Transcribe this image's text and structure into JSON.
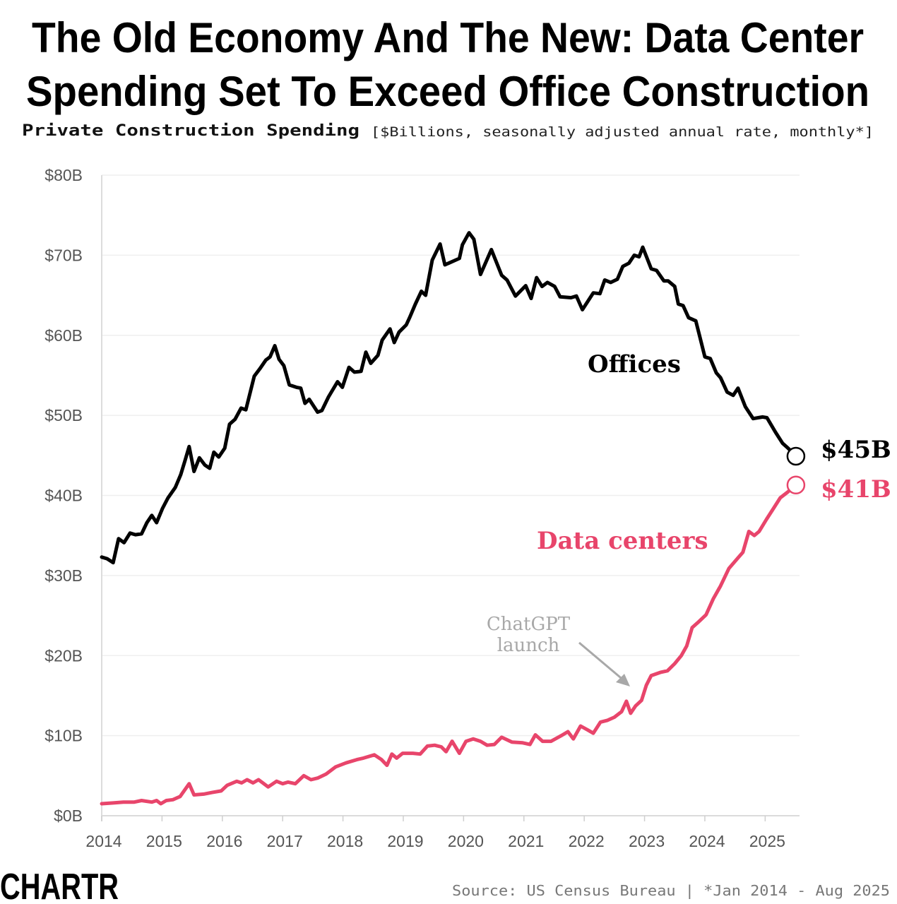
{
  "title_line1": "The Old Economy And The New: Data Center",
  "title_line2": "Spending Set To Exceed Office Construction",
  "subtitle_bold": "Private Construction Spending",
  "subtitle_note": "[$Billions, seasonally adjusted annual rate, monthly*]",
  "source": "Source: US Census Bureau | *Jan 2014 - Aug 2025",
  "logo": "CHARTR",
  "colors": {
    "offices": "#000000",
    "data_centers": "#e8456b",
    "annotation": "#a8a8a8",
    "grid": "#efefef"
  },
  "chart_data": {
    "type": "line",
    "title": "The Old Economy And The New: Data Center Spending Set To Exceed Office Construction",
    "xlabel": "",
    "ylabel": "",
    "xlim": [
      2014,
      2025.64
    ],
    "ylim": [
      0,
      80
    ],
    "grid": "horizontal",
    "x_ticks": [
      "2014",
      "2015",
      "2016",
      "2017",
      "2018",
      "2019",
      "2020",
      "2021",
      "2022",
      "2023",
      "2024",
      "2025"
    ],
    "y_ticks": [
      "$0B",
      "$10B",
      "$20B",
      "$30B",
      "$40B",
      "$50B",
      "$60B",
      "$70B",
      "$80B"
    ],
    "series": [
      {
        "name": "Offices",
        "end_label": "$45B",
        "points": [
          [
            2014.0,
            32.3
          ],
          [
            2014.09,
            32.1
          ],
          [
            2014.19,
            31.6
          ],
          [
            2014.28,
            34.6
          ],
          [
            2014.37,
            34.1
          ],
          [
            2014.47,
            35.3
          ],
          [
            2014.56,
            35.1
          ],
          [
            2014.66,
            35.2
          ],
          [
            2014.75,
            36.6
          ],
          [
            2014.83,
            37.5
          ],
          [
            2014.91,
            36.6
          ],
          [
            2015.01,
            38.4
          ],
          [
            2015.1,
            39.7
          ],
          [
            2015.22,
            41.0
          ],
          [
            2015.31,
            42.6
          ],
          [
            2015.38,
            44.3
          ],
          [
            2015.45,
            46.1
          ],
          [
            2015.53,
            43.0
          ],
          [
            2015.62,
            44.7
          ],
          [
            2015.71,
            43.8
          ],
          [
            2015.79,
            43.4
          ],
          [
            2015.86,
            45.4
          ],
          [
            2015.94,
            44.8
          ],
          [
            2016.04,
            45.9
          ],
          [
            2016.12,
            48.9
          ],
          [
            2016.21,
            49.5
          ],
          [
            2016.31,
            50.9
          ],
          [
            2016.39,
            50.7
          ],
          [
            2016.53,
            54.9
          ],
          [
            2016.62,
            55.8
          ],
          [
            2016.72,
            56.9
          ],
          [
            2016.79,
            57.3
          ],
          [
            2016.87,
            58.7
          ],
          [
            2016.94,
            57.0
          ],
          [
            2017.02,
            56.2
          ],
          [
            2017.11,
            53.8
          ],
          [
            2017.23,
            53.5
          ],
          [
            2017.3,
            53.4
          ],
          [
            2017.37,
            51.5
          ],
          [
            2017.44,
            52.0
          ],
          [
            2017.58,
            50.4
          ],
          [
            2017.65,
            50.6
          ],
          [
            2017.76,
            52.3
          ],
          [
            2017.91,
            54.2
          ],
          [
            2017.99,
            53.5
          ],
          [
            2018.1,
            56.0
          ],
          [
            2018.19,
            55.4
          ],
          [
            2018.3,
            55.5
          ],
          [
            2018.38,
            57.9
          ],
          [
            2018.46,
            56.5
          ],
          [
            2018.58,
            57.5
          ],
          [
            2018.65,
            59.4
          ],
          [
            2018.78,
            60.8
          ],
          [
            2018.85,
            59.1
          ],
          [
            2018.93,
            60.4
          ],
          [
            2019.05,
            61.3
          ],
          [
            2019.11,
            62.3
          ],
          [
            2019.2,
            63.9
          ],
          [
            2019.3,
            65.5
          ],
          [
            2019.37,
            65.0
          ],
          [
            2019.48,
            69.4
          ],
          [
            2019.61,
            71.4
          ],
          [
            2019.69,
            68.8
          ],
          [
            2019.93,
            69.6
          ],
          [
            2019.98,
            71.3
          ],
          [
            2020.09,
            72.8
          ],
          [
            2020.17,
            72.0
          ],
          [
            2020.28,
            67.6
          ],
          [
            2020.46,
            70.7
          ],
          [
            2020.63,
            67.5
          ],
          [
            2020.72,
            66.9
          ],
          [
            2020.86,
            64.9
          ],
          [
            2021.03,
            66.2
          ],
          [
            2021.12,
            64.6
          ],
          [
            2021.21,
            67.2
          ],
          [
            2021.3,
            66.1
          ],
          [
            2021.39,
            66.6
          ],
          [
            2021.51,
            66.1
          ],
          [
            2021.6,
            64.8
          ],
          [
            2021.78,
            64.7
          ],
          [
            2021.87,
            64.9
          ],
          [
            2021.97,
            63.2
          ],
          [
            2022.15,
            65.3
          ],
          [
            2022.26,
            65.2
          ],
          [
            2022.34,
            66.9
          ],
          [
            2022.44,
            66.6
          ],
          [
            2022.55,
            67.0
          ],
          [
            2022.64,
            68.6
          ],
          [
            2022.74,
            69.0
          ],
          [
            2022.83,
            70.0
          ],
          [
            2022.91,
            69.8
          ],
          [
            2022.97,
            71.0
          ],
          [
            2023.11,
            68.3
          ],
          [
            2023.2,
            68.1
          ],
          [
            2023.32,
            66.8
          ],
          [
            2023.39,
            66.8
          ],
          [
            2023.5,
            66.1
          ],
          [
            2023.56,
            63.9
          ],
          [
            2023.64,
            63.7
          ],
          [
            2023.73,
            62.2
          ],
          [
            2023.85,
            61.8
          ],
          [
            2023.91,
            60.0
          ],
          [
            2024.0,
            57.3
          ],
          [
            2024.09,
            57.1
          ],
          [
            2024.19,
            55.3
          ],
          [
            2024.26,
            54.7
          ],
          [
            2024.37,
            52.9
          ],
          [
            2024.47,
            52.5
          ],
          [
            2024.55,
            53.4
          ],
          [
            2024.67,
            51.1
          ],
          [
            2024.8,
            49.6
          ],
          [
            2024.96,
            49.8
          ],
          [
            2025.03,
            49.7
          ],
          [
            2025.17,
            47.9
          ],
          [
            2025.29,
            46.5
          ],
          [
            2025.38,
            45.9
          ],
          [
            2025.51,
            44.9
          ]
        ]
      },
      {
        "name": "Data centers",
        "end_label": "$41B",
        "points": [
          [
            2014.0,
            1.5
          ],
          [
            2014.19,
            1.6
          ],
          [
            2014.36,
            1.7
          ],
          [
            2014.54,
            1.7
          ],
          [
            2014.66,
            1.9
          ],
          [
            2014.83,
            1.7
          ],
          [
            2014.91,
            1.9
          ],
          [
            2014.98,
            1.5
          ],
          [
            2015.07,
            1.9
          ],
          [
            2015.18,
            2.0
          ],
          [
            2015.3,
            2.4
          ],
          [
            2015.45,
            4.0
          ],
          [
            2015.53,
            2.6
          ],
          [
            2015.69,
            2.7
          ],
          [
            2015.83,
            2.9
          ],
          [
            2015.98,
            3.1
          ],
          [
            2016.08,
            3.8
          ],
          [
            2016.24,
            4.3
          ],
          [
            2016.32,
            4.1
          ],
          [
            2016.41,
            4.5
          ],
          [
            2016.51,
            4.1
          ],
          [
            2016.6,
            4.5
          ],
          [
            2016.76,
            3.6
          ],
          [
            2016.9,
            4.3
          ],
          [
            2017.0,
            4.0
          ],
          [
            2017.09,
            4.2
          ],
          [
            2017.21,
            4.0
          ],
          [
            2017.35,
            5.0
          ],
          [
            2017.47,
            4.5
          ],
          [
            2017.58,
            4.7
          ],
          [
            2017.72,
            5.2
          ],
          [
            2017.88,
            6.1
          ],
          [
            2018.05,
            6.6
          ],
          [
            2018.23,
            7.0
          ],
          [
            2018.34,
            7.2
          ],
          [
            2018.52,
            7.6
          ],
          [
            2018.64,
            7.0
          ],
          [
            2018.73,
            6.3
          ],
          [
            2018.81,
            7.7
          ],
          [
            2018.89,
            7.2
          ],
          [
            2018.99,
            7.8
          ],
          [
            2019.16,
            7.8
          ],
          [
            2019.28,
            7.7
          ],
          [
            2019.4,
            8.7
          ],
          [
            2019.52,
            8.8
          ],
          [
            2019.63,
            8.6
          ],
          [
            2019.71,
            8.0
          ],
          [
            2019.81,
            9.3
          ],
          [
            2019.93,
            7.8
          ],
          [
            2020.04,
            9.3
          ],
          [
            2020.16,
            9.6
          ],
          [
            2020.28,
            9.3
          ],
          [
            2020.39,
            8.8
          ],
          [
            2020.51,
            8.9
          ],
          [
            2020.63,
            9.8
          ],
          [
            2020.8,
            9.2
          ],
          [
            2020.98,
            9.1
          ],
          [
            2021.1,
            8.9
          ],
          [
            2021.19,
            10.1
          ],
          [
            2021.31,
            9.3
          ],
          [
            2021.45,
            9.3
          ],
          [
            2021.62,
            10.0
          ],
          [
            2021.73,
            10.5
          ],
          [
            2021.82,
            9.6
          ],
          [
            2021.94,
            11.2
          ],
          [
            2022.06,
            10.7
          ],
          [
            2022.15,
            10.3
          ],
          [
            2022.27,
            11.7
          ],
          [
            2022.38,
            11.9
          ],
          [
            2022.5,
            12.3
          ],
          [
            2022.62,
            13.0
          ],
          [
            2022.7,
            14.3
          ],
          [
            2022.77,
            12.8
          ],
          [
            2022.85,
            13.7
          ],
          [
            2022.95,
            14.4
          ],
          [
            2023.03,
            16.3
          ],
          [
            2023.11,
            17.5
          ],
          [
            2023.26,
            17.9
          ],
          [
            2023.38,
            18.1
          ],
          [
            2023.5,
            19.0
          ],
          [
            2023.61,
            20.0
          ],
          [
            2023.7,
            21.2
          ],
          [
            2023.79,
            23.5
          ],
          [
            2023.88,
            24.1
          ],
          [
            2024.02,
            25.1
          ],
          [
            2024.14,
            27.1
          ],
          [
            2024.26,
            28.7
          ],
          [
            2024.4,
            30.9
          ],
          [
            2024.55,
            32.2
          ],
          [
            2024.63,
            32.9
          ],
          [
            2024.73,
            35.5
          ],
          [
            2024.82,
            35.0
          ],
          [
            2024.9,
            35.5
          ],
          [
            2025.02,
            37.0
          ],
          [
            2025.14,
            38.4
          ],
          [
            2025.25,
            39.7
          ],
          [
            2025.37,
            40.4
          ],
          [
            2025.51,
            41.3
          ]
        ]
      }
    ],
    "annotations": [
      {
        "text_line1": "ChatGPT",
        "text_line2": "launch",
        "x": 2022.92
      }
    ]
  }
}
